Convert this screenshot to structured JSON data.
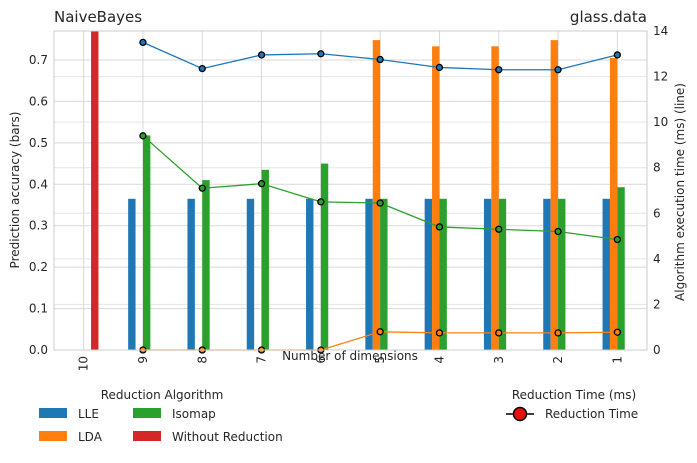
{
  "chart_data": {
    "type": "bar",
    "title_left": "NaiveBayes",
    "title_right": "glass.data",
    "xlabel": "Number of dimensions",
    "ylabel_left": "Prediction accuracy (bars)",
    "ylabel_right": "Algorithm execution time (ms) (line)",
    "categories": [
      "10",
      "9",
      "8",
      "7",
      "6",
      "5",
      "4",
      "3",
      "2",
      "1"
    ],
    "ylim_left": [
      0,
      0.77
    ],
    "yticks_left": [
      "0.0",
      "0.1",
      "0.2",
      "0.3",
      "0.4",
      "0.5",
      "0.6",
      "0.7"
    ],
    "ylim_right": [
      0,
      14
    ],
    "yticks_right": [
      "0",
      "2",
      "4",
      "6",
      "8",
      "10",
      "12",
      "14"
    ],
    "grid": true,
    "series": [
      {
        "name": "LLE",
        "color": "#1f77b4",
        "values": [
          null,
          0.365,
          0.365,
          0.365,
          0.365,
          0.365,
          0.365,
          0.365,
          0.365,
          0.365
        ]
      },
      {
        "name": "LDA",
        "color": "#ff7f0e",
        "values": [
          null,
          null,
          null,
          null,
          null,
          0.748,
          0.733,
          0.733,
          0.748,
          0.705
        ]
      },
      {
        "name": "Isomap",
        "color": "#2ca02c",
        "values": [
          null,
          0.518,
          0.41,
          0.435,
          0.45,
          0.365,
          0.365,
          0.365,
          0.365,
          0.393
        ]
      },
      {
        "name": "Without Reduction",
        "color": "#d62728",
        "values": [
          0.77,
          null,
          null,
          null,
          null,
          null,
          null,
          null,
          null,
          null
        ]
      }
    ],
    "lines": [
      {
        "color": "#1f77b4",
        "values": [
          null,
          13.5,
          12.35,
          12.95,
          13.0,
          12.75,
          12.4,
          12.3,
          12.3,
          12.95
        ]
      },
      {
        "color": "#ff7f0e",
        "values": [
          null,
          0.0,
          0.0,
          0.0,
          0.0,
          0.8,
          0.75,
          0.75,
          0.75,
          0.78
        ]
      },
      {
        "color": "#2ca02c",
        "values": [
          null,
          9.4,
          7.1,
          7.3,
          6.5,
          6.45,
          5.4,
          5.3,
          5.2,
          4.85
        ]
      }
    ],
    "legend_main": {
      "title": "Reduction Algorithm",
      "placement": "bottom-left",
      "items": [
        {
          "label": "LLE",
          "color": "#1f77b4"
        },
        {
          "label": "Isomap",
          "color": "#2ca02c"
        },
        {
          "label": "LDA",
          "color": "#ff7f0e"
        },
        {
          "label": "Without Reduction",
          "color": "#d62728"
        }
      ]
    },
    "legend_time": {
      "title": "Reduction Time (ms)",
      "placement": "bottom-right",
      "label": "Reduction Time",
      "marker_color": "#e8120c"
    }
  }
}
